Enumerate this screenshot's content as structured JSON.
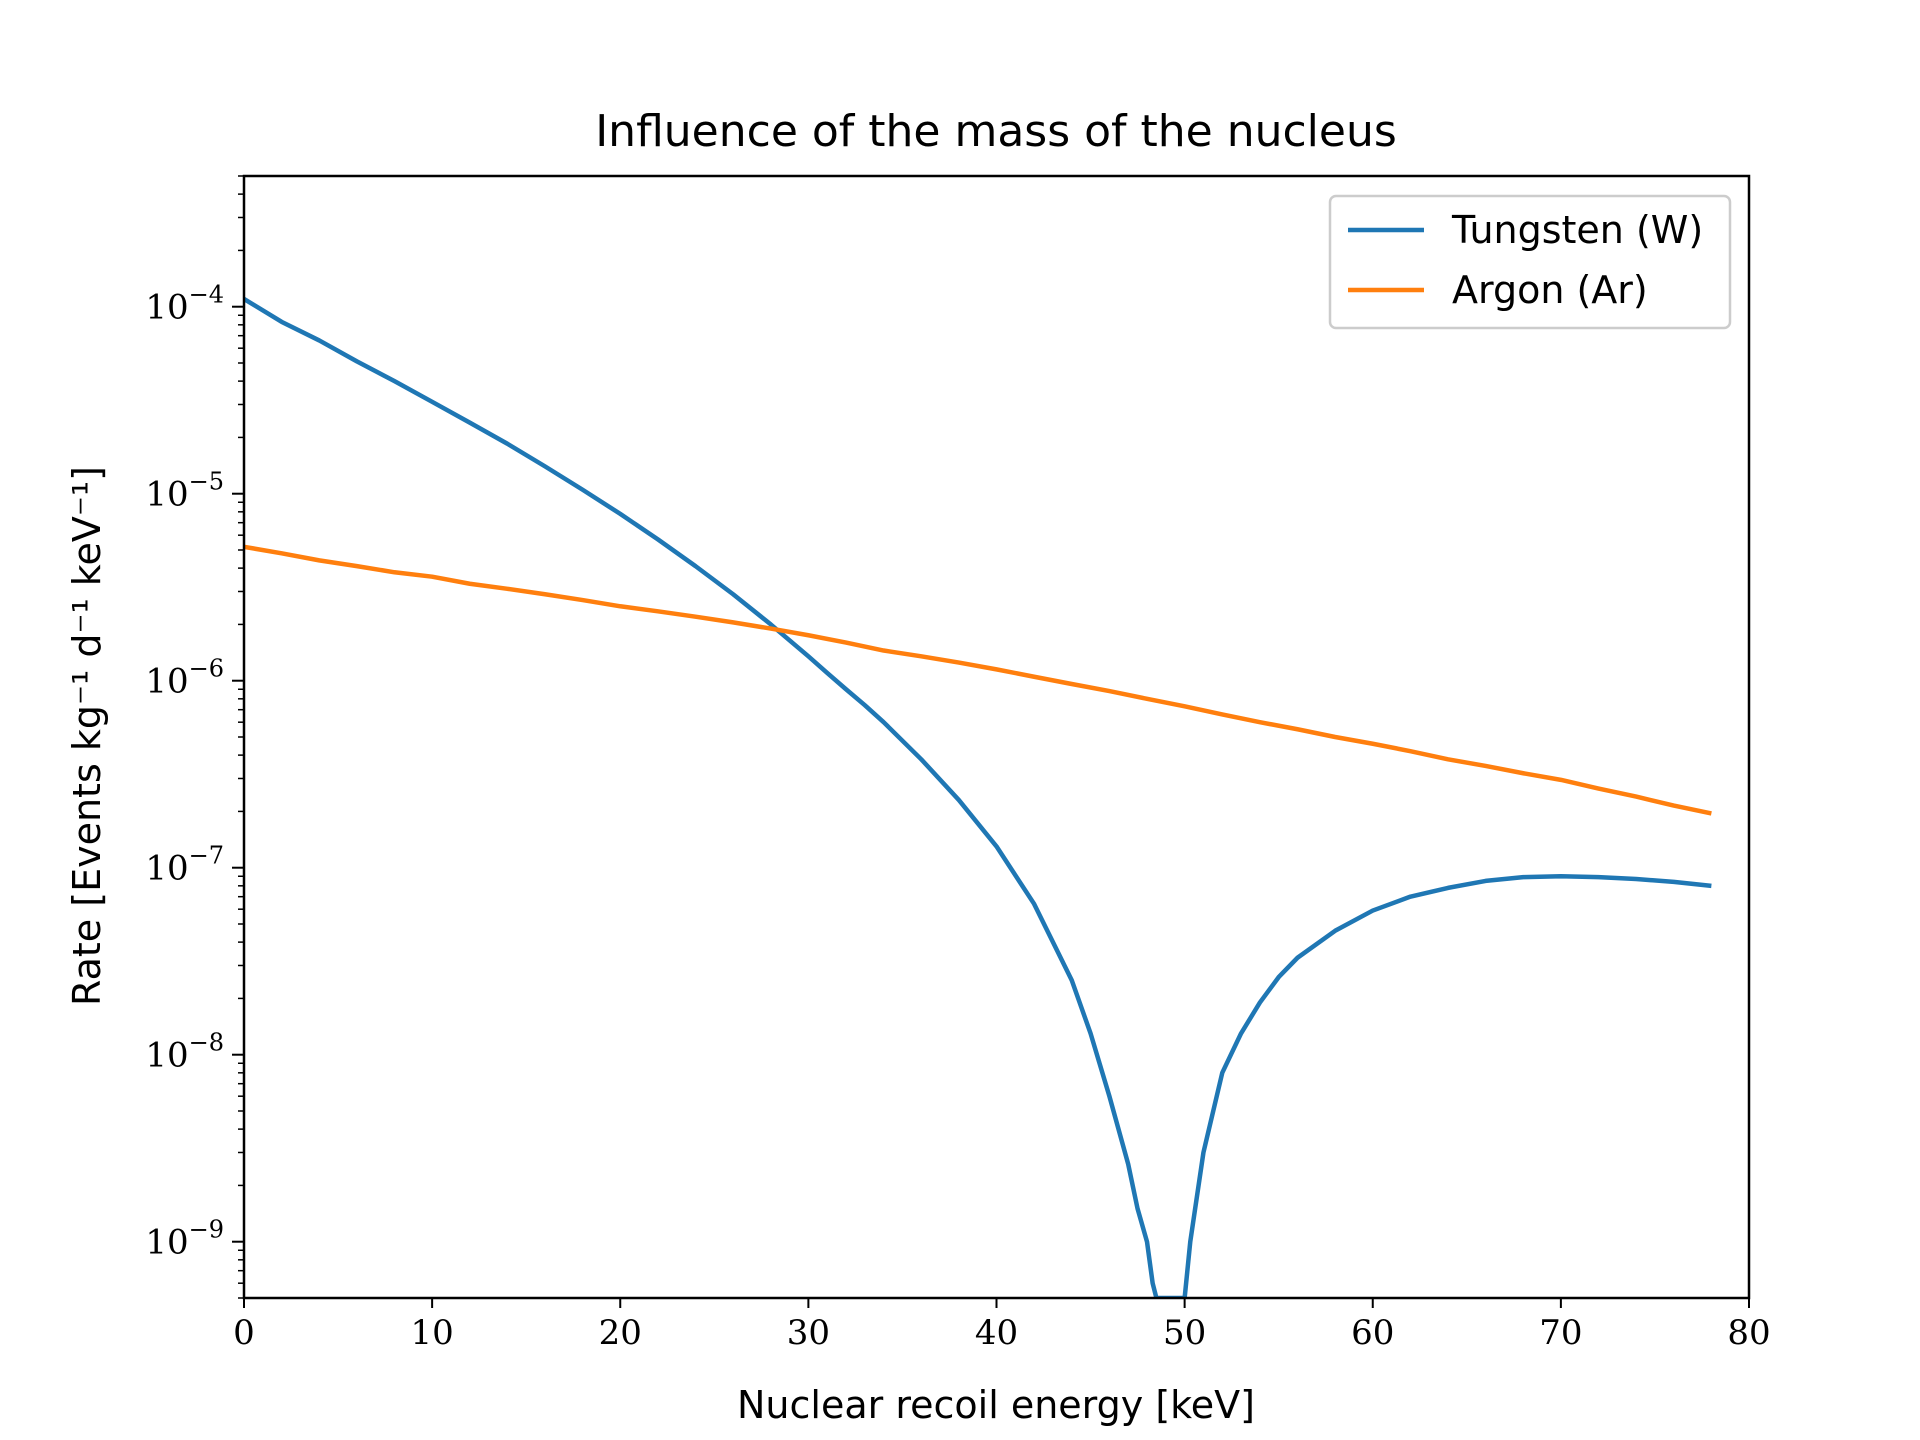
{
  "chart_data": {
    "type": "line",
    "title": "Influence of the mass of the nucleus",
    "xlabel": "Nuclear recoil energy [keV]",
    "ylabel": "Rate [Events kg⁻¹ d⁻¹ keV⁻¹]",
    "xlim": [
      0,
      80
    ],
    "ylim": [
      5e-10,
      0.0005
    ],
    "yscale": "log",
    "grid": false,
    "legend_position": "top-right",
    "x_ticks": [
      0,
      10,
      20,
      30,
      40,
      50,
      60,
      70,
      80
    ],
    "x_tick_labels": [
      "0",
      "10",
      "20",
      "30",
      "40",
      "50",
      "60",
      "70",
      "80"
    ],
    "y_ticks": [
      {
        "value": 1e-09,
        "base": "10",
        "exp": "−9"
      },
      {
        "value": 1e-08,
        "base": "10",
        "exp": "−8"
      },
      {
        "value": 1e-07,
        "base": "10",
        "exp": "−7"
      },
      {
        "value": 1e-06,
        "base": "10",
        "exp": "−6"
      },
      {
        "value": 1e-05,
        "base": "10",
        "exp": "−5"
      },
      {
        "value": 0.0001,
        "base": "10",
        "exp": "−4"
      }
    ],
    "series": [
      {
        "name": "Tungsten (W)",
        "color": "#1f77b4",
        "x": [
          0,
          2,
          4,
          6,
          8,
          10,
          12,
          14,
          16,
          18,
          20,
          22,
          24,
          26,
          28,
          30,
          31,
          32,
          33,
          34,
          36,
          38,
          40,
          42,
          44,
          45,
          46,
          47,
          47.5,
          48,
          48.3,
          48.5,
          50,
          50.3,
          51,
          52,
          53,
          54,
          55,
          56,
          58,
          60,
          62,
          64,
          66,
          68,
          70,
          72,
          74,
          76,
          78
        ],
        "y": [
          0.00011,
          8.3e-05,
          6.6e-05,
          5.1e-05,
          4e-05,
          3.1e-05,
          2.4e-05,
          1.85e-05,
          1.4e-05,
          1.05e-05,
          7.8e-06,
          5.7e-06,
          4.1e-06,
          2.9e-06,
          2e-06,
          1.35e-06,
          1.1e-06,
          9e-07,
          7.4e-07,
          6e-07,
          3.8e-07,
          2.3e-07,
          1.3e-07,
          6.4e-08,
          2.5e-08,
          1.3e-08,
          6e-09,
          2.6e-09,
          1.5e-09,
          1e-09,
          6e-10,
          5e-10,
          5e-10,
          1e-09,
          3e-09,
          8e-09,
          1.3e-08,
          1.9e-08,
          2.6e-08,
          3.3e-08,
          4.6e-08,
          5.9e-08,
          7e-08,
          7.8e-08,
          8.5e-08,
          8.9e-08,
          9e-08,
          8.9e-08,
          8.7e-08,
          8.4e-08,
          8e-08
        ]
      },
      {
        "name": "Argon (Ar)",
        "color": "#ff7f0e",
        "x": [
          0,
          2,
          4,
          6,
          8,
          10,
          12,
          14,
          16,
          18,
          20,
          22,
          24,
          26,
          28,
          30,
          32,
          34,
          36,
          38,
          40,
          42,
          44,
          46,
          48,
          50,
          52,
          54,
          56,
          58,
          60,
          62,
          64,
          66,
          68,
          70,
          72,
          74,
          76,
          78
        ],
        "y": [
          5.2e-06,
          4.8e-06,
          4.4e-06,
          4.1e-06,
          3.8e-06,
          3.6e-06,
          3.3e-06,
          3.1e-06,
          2.9e-06,
          2.7e-06,
          2.5e-06,
          2.35e-06,
          2.2e-06,
          2.05e-06,
          1.9e-06,
          1.75e-06,
          1.6e-06,
          1.45e-06,
          1.35e-06,
          1.25e-06,
          1.15e-06,
          1.05e-06,
          9.6e-07,
          8.8e-07,
          8e-07,
          7.3e-07,
          6.6e-07,
          6e-07,
          5.5e-07,
          5e-07,
          4.6e-07,
          4.2e-07,
          3.8e-07,
          3.5e-07,
          3.2e-07,
          2.95e-07,
          2.65e-07,
          2.4e-07,
          2.15e-07,
          1.95e-07
        ]
      }
    ]
  }
}
